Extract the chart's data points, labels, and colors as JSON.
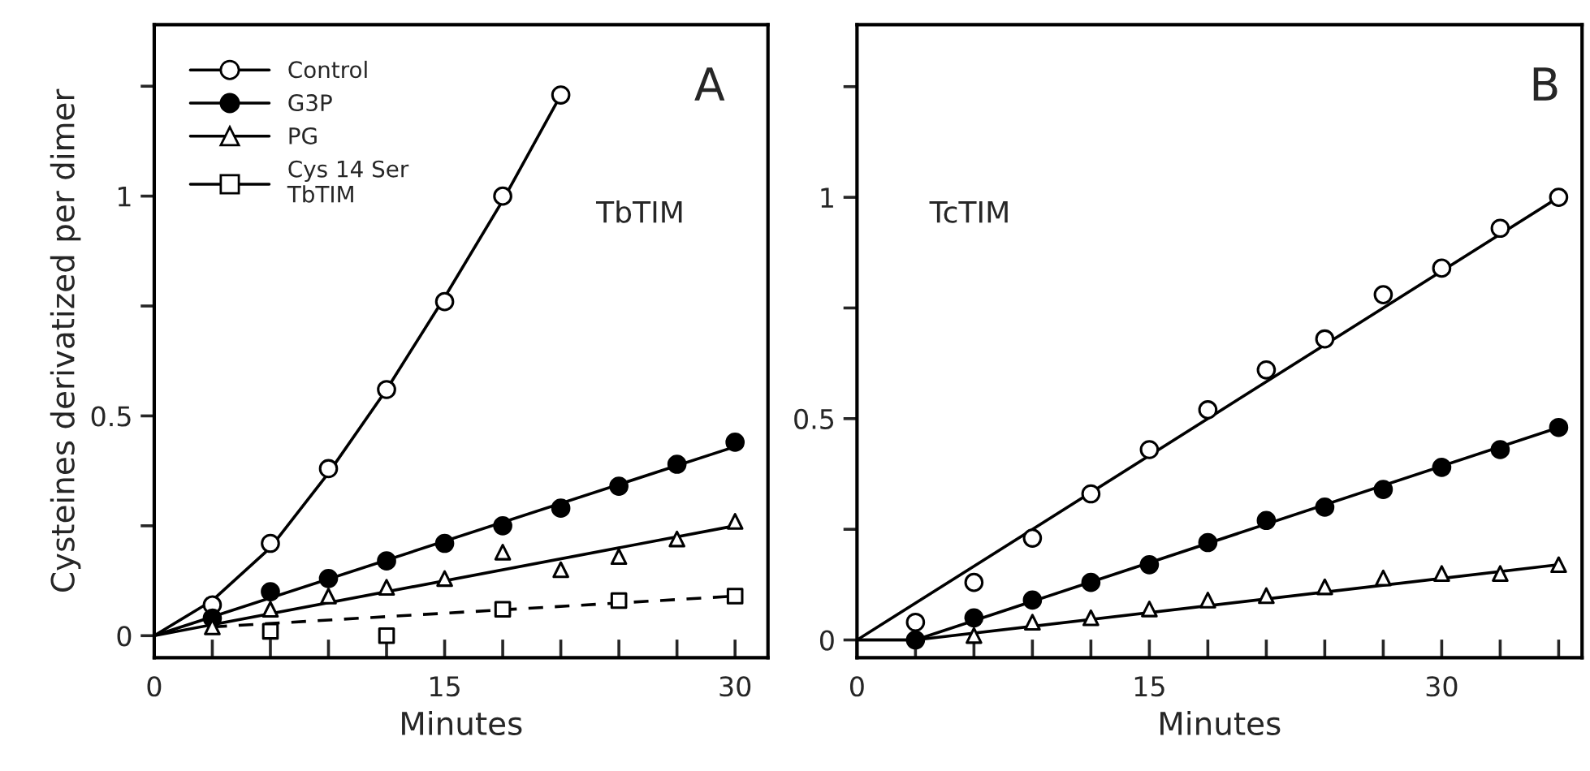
{
  "chart_data": [
    {
      "type": "scatter",
      "xlabel": "Minutes",
      "ylabel": "Cysteines derivatized per dimer",
      "annotations": [
        "A",
        "TbTIM"
      ],
      "xlim": [
        0,
        31.7
      ],
      "ylim": [
        -0.05,
        1.39
      ],
      "xticks": [
        0,
        {
          "value": 3,
          "label": null
        },
        {
          "value": 6,
          "label": null
        },
        {
          "value": 9,
          "label": null
        },
        {
          "value": 12,
          "label": null
        },
        15,
        {
          "value": 18,
          "label": null
        },
        {
          "value": 21,
          "label": null
        },
        {
          "value": 24,
          "label": null
        },
        {
          "value": 27,
          "label": null
        },
        30
      ],
      "yticks": [
        0,
        {
          "value": 0.25,
          "label": null
        },
        0.5,
        {
          "value": 0.75,
          "label": null
        },
        1,
        {
          "value": 1.25,
          "label": null
        }
      ],
      "grid": false,
      "legend": "top left",
      "series": [
        {
          "name": "Control",
          "type": "scatter",
          "marker": "circle",
          "color": "#ffffff",
          "x": [
            3,
            6,
            9,
            12,
            15,
            18,
            21
          ],
          "values": [
            0.07,
            0.21,
            0.38,
            0.56,
            0.76,
            1.0,
            1.23
          ]
        },
        {
          "name": "G3P",
          "type": "scatter",
          "marker": "circle",
          "color": "#000000",
          "x": [
            3,
            6,
            9,
            12,
            15,
            18,
            21,
            24,
            27,
            30
          ],
          "values": [
            0.04,
            0.1,
            0.13,
            0.17,
            0.21,
            0.25,
            0.29,
            0.34,
            0.39,
            0.44
          ]
        },
        {
          "name": "PG",
          "type": "scatter",
          "marker": "triangle",
          "color": "#ffffff",
          "x": [
            3,
            6,
            9,
            12,
            15,
            18,
            21,
            24,
            27,
            30
          ],
          "values": [
            0.02,
            0.06,
            0.09,
            0.11,
            0.13,
            0.19,
            0.15,
            0.18,
            0.22,
            0.26
          ]
        },
        {
          "name": "Cys 14 Ser\nTbTIM",
          "type": "scatter",
          "marker": "square",
          "color": "#ffffff",
          "x": [
            6,
            12,
            18,
            24,
            30
          ],
          "values": [
            0.01,
            0.0,
            0.06,
            0.08,
            0.09
          ]
        },
        {
          "type": "line",
          "color": "#000000",
          "line_style": "solid",
          "x": [
            0,
            3,
            6,
            9,
            12,
            15,
            18,
            21
          ],
          "values": [
            0,
            0.08,
            0.2,
            0.37,
            0.56,
            0.77,
            0.99,
            1.23
          ]
        },
        {
          "type": "line",
          "color": "#000000",
          "line_style": "solid",
          "x": [
            0,
            30
          ],
          "values": [
            0,
            0.43
          ]
        },
        {
          "type": "line",
          "color": "#000000",
          "line_style": "solid",
          "x": [
            0,
            30
          ],
          "values": [
            0,
            0.25
          ]
        },
        {
          "type": "line",
          "color": "#000000",
          "line_style": "dashed",
          "x": [
            3,
            30
          ],
          "values": [
            0.02,
            0.09
          ]
        }
      ]
    },
    {
      "type": "scatter",
      "xlabel": "Minutes",
      "annotations": [
        "B",
        "TcTIM"
      ],
      "xlim": [
        0,
        37.2
      ],
      "ylim": [
        -0.04,
        1.39
      ],
      "xticks": [
        0,
        {
          "value": 3,
          "label": null
        },
        {
          "value": 6,
          "label": null
        },
        {
          "value": 9,
          "label": null
        },
        {
          "value": 12,
          "label": null
        },
        15,
        {
          "value": 18,
          "label": null
        },
        {
          "value": 21,
          "label": null
        },
        {
          "value": 24,
          "label": null
        },
        {
          "value": 27,
          "label": null
        },
        30,
        {
          "value": 33,
          "label": null
        },
        {
          "value": 36,
          "label": null
        }
      ],
      "yticks": [
        0,
        {
          "value": 0.25,
          "label": null
        },
        0.5,
        {
          "value": 0.75,
          "label": null
        },
        1,
        {
          "value": 1.25,
          "label": null
        }
      ],
      "grid": false,
      "series": [
        {
          "type": "scatter",
          "marker": "circle",
          "color": "#ffffff",
          "x": [
            3,
            6,
            9,
            12,
            15,
            18,
            21,
            24,
            27,
            30,
            33,
            36
          ],
          "values": [
            0.04,
            0.13,
            0.23,
            0.33,
            0.43,
            0.52,
            0.61,
            0.68,
            0.78,
            0.84,
            0.93,
            1.0
          ]
        },
        {
          "type": "scatter",
          "marker": "circle",
          "color": "#000000",
          "x": [
            3,
            6,
            9,
            12,
            15,
            18,
            21,
            24,
            27,
            30,
            33,
            36
          ],
          "values": [
            0.0,
            0.05,
            0.09,
            0.13,
            0.17,
            0.22,
            0.27,
            0.3,
            0.34,
            0.39,
            0.43,
            0.48
          ]
        },
        {
          "type": "scatter",
          "marker": "triangle",
          "color": "#ffffff",
          "x": [
            6,
            9,
            12,
            15,
            18,
            21,
            24,
            27,
            30,
            33,
            36
          ],
          "values": [
            0.01,
            0.04,
            0.05,
            0.07,
            0.09,
            0.1,
            0.12,
            0.14,
            0.15,
            0.15,
            0.17
          ]
        },
        {
          "type": "line",
          "color": "#000000",
          "line_style": "solid",
          "x": [
            0,
            36
          ],
          "values": [
            0,
            1.0
          ]
        },
        {
          "type": "line",
          "color": "#000000",
          "line_style": "solid",
          "x": [
            0,
            3,
            36
          ],
          "values": [
            0,
            0,
            0.48
          ]
        },
        {
          "type": "line",
          "color": "#000000",
          "line_style": "solid",
          "x": [
            0,
            3,
            36
          ],
          "values": [
            0,
            0,
            0.17
          ]
        }
      ]
    }
  ]
}
